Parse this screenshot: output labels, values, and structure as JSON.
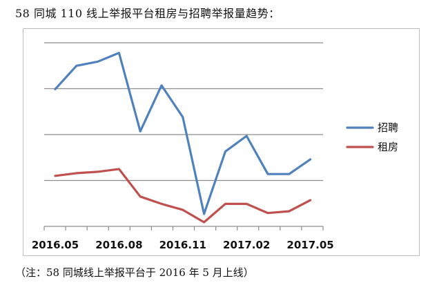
{
  "title": "58 同城 110 线上举报平台租房与招聘举报量趋势：",
  "note": "（注：58 同城线上举报平台于 2016 年 5 月上线）",
  "chart_data": {
    "type": "line",
    "title": "",
    "xlabel": "",
    "ylabel": "",
    "y_axis_labels_shown": false,
    "grid": "horizontal",
    "legend_position": "right",
    "ylim": [
      0,
      4
    ],
    "x": [
      "2016.05",
      "2016.06",
      "2016.07",
      "2016.08",
      "2016.09",
      "2016.10",
      "2016.11",
      "2016.12",
      "2017.01",
      "2017.02",
      "2017.03",
      "2017.04",
      "2017.05"
    ],
    "x_tick_labels": [
      "2016.05",
      "2016.08",
      "2016.11",
      "2017.02",
      "2017.05"
    ],
    "series": [
      {
        "name": "招聘",
        "color": "#4f81bd",
        "values": [
          2.99,
          3.5,
          3.59,
          3.78,
          2.07,
          3.07,
          2.38,
          0.27,
          1.63,
          1.97,
          1.14,
          1.14,
          1.46
        ]
      },
      {
        "name": "租房",
        "color": "#c0504d",
        "values": [
          1.1,
          1.16,
          1.19,
          1.25,
          0.65,
          0.49,
          0.36,
          0.09,
          0.49,
          0.49,
          0.29,
          0.33,
          0.57
        ]
      }
    ]
  }
}
